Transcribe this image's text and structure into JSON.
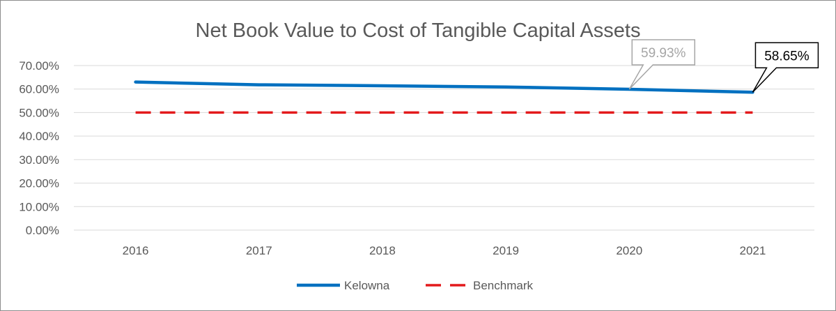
{
  "chart_data": {
    "type": "line",
    "title": "Net Book Value to Cost of Tangible Capital Assets",
    "xlabel": "",
    "ylabel": "",
    "categories": [
      "2016",
      "2017",
      "2018",
      "2019",
      "2020",
      "2021"
    ],
    "y_ticks": [
      "0.00%",
      "10.00%",
      "20.00%",
      "30.00%",
      "40.00%",
      "50.00%",
      "60.00%",
      "70.00%"
    ],
    "ylim": [
      0,
      70
    ],
    "grid": true,
    "legend_position": "bottom",
    "series": [
      {
        "name": "Kelowna",
        "values": [
          63.0,
          61.8,
          61.4,
          60.9,
          59.93,
          58.65
        ],
        "color": "#0070c0",
        "style": "solid"
      },
      {
        "name": "Benchmark",
        "values": [
          50,
          50,
          50,
          50,
          50,
          50
        ],
        "color": "#e31a1c",
        "style": "dashed"
      }
    ],
    "annotations": [
      {
        "text": "59.93%",
        "series": "Kelowna",
        "category": "2020",
        "color": "#a6a6a6"
      },
      {
        "text": "58.65%",
        "series": "Kelowna",
        "category": "2021",
        "color": "#000000"
      }
    ]
  }
}
